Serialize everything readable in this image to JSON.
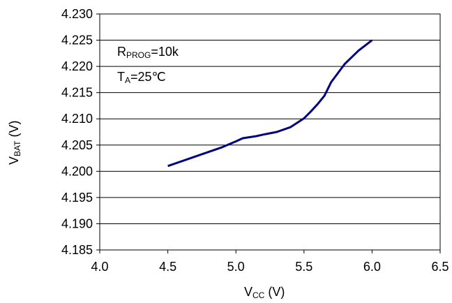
{
  "chart_data": {
    "type": "line",
    "xlim": [
      4.0,
      6.5
    ],
    "ylim": [
      4.185,
      4.23
    ],
    "x_ticks": [
      "4.0",
      "4.5",
      "5.0",
      "5.5",
      "6.0",
      "6.5"
    ],
    "y_ticks": [
      "4.230",
      "4.225",
      "4.220",
      "4.215",
      "4.210",
      "4.205",
      "4.200",
      "4.195",
      "4.190",
      "4.185"
    ],
    "grid": "horizontal",
    "series": [
      {
        "color": "#000080",
        "x": [
          4.5,
          4.7,
          4.9,
          5.0,
          5.05,
          5.1,
          5.15,
          5.2,
          5.3,
          5.4,
          5.5,
          5.55,
          5.6,
          5.65,
          5.7,
          5.8,
          5.9,
          6.0
        ],
        "y": [
          4.201,
          4.2028,
          4.2046,
          4.2057,
          4.2063,
          4.2065,
          4.2067,
          4.207,
          4.2075,
          4.2084,
          4.2101,
          4.2114,
          4.2128,
          4.2144,
          4.217,
          4.2205,
          4.223,
          4.225
        ]
      }
    ],
    "ylabel": {
      "main": "V",
      "sub": "BAT",
      "unit": " (V)"
    },
    "xlabel": {
      "main": "V",
      "sub": "CC",
      "unit": " (V)"
    },
    "annotations": [
      {
        "main": "R",
        "sub": "PROG",
        "rest": "=10k"
      },
      {
        "main": "T",
        "sub": "A",
        "rest": "=25℃"
      }
    ]
  }
}
